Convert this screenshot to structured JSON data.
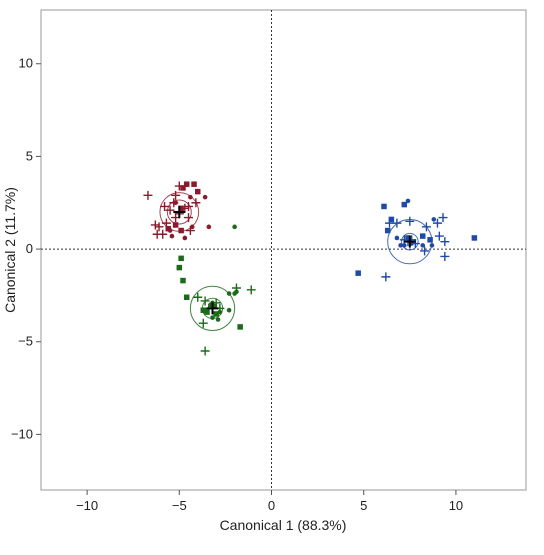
{
  "chart_data": {
    "type": "scatter",
    "title": "",
    "xlabel": "Canonical 1 (88.3%)",
    "ylabel": "Canonical 2 (11.7%)",
    "xlim": [
      -12.5,
      13.8
    ],
    "ylim": [
      -13,
      12.9
    ],
    "xticks": [
      -10,
      -5,
      0,
      5,
      10
    ],
    "xtick_labels": [
      "−10",
      "−5",
      "0",
      "5",
      "10"
    ],
    "yticks": [
      -10,
      -5,
      0,
      5,
      10
    ],
    "ytick_labels": [
      "−10",
      "−5",
      "0",
      "5",
      "10"
    ],
    "reference_lines": {
      "x": 0,
      "y": 0,
      "style": "dotted"
    },
    "grid": false,
    "legend": "none",
    "colors": {
      "red": "#8b1a2b",
      "green": "#1b6b1b",
      "blue": "#1f4aa8"
    },
    "groups": [
      {
        "color": "red",
        "centroid": [
          -5.0,
          2.0
        ],
        "circle_radii": [
          0.65,
          1.05
        ],
        "squares": [
          [
            -4.8,
            3.3
          ],
          [
            -4.6,
            3.5
          ],
          [
            -4.2,
            3.5
          ],
          [
            -4.0,
            3.1
          ],
          [
            -5.2,
            1.3
          ],
          [
            -4.9,
            1.0
          ],
          [
            -5.6,
            1.1
          ],
          [
            -4.9,
            2.2
          ]
        ],
        "dots": [
          [
            -4.4,
            2.8
          ],
          [
            -3.6,
            2.8
          ],
          [
            -3.4,
            1.2
          ],
          [
            -4.3,
            1.2
          ],
          [
            -4.7,
            0.6
          ],
          [
            -5.4,
            0.7
          ],
          [
            -5.5,
            1.0
          ],
          [
            -5.2,
            2.5
          ]
        ],
        "crosses": [
          [
            -6.7,
            2.9
          ],
          [
            -5.2,
            2.9
          ],
          [
            -5.0,
            3.4
          ],
          [
            -4.7,
            2.2
          ],
          [
            -4.5,
            2.3
          ],
          [
            -4.1,
            2.5
          ],
          [
            -5.3,
            2.5
          ],
          [
            -5.8,
            2.3
          ],
          [
            -6.1,
            1.2
          ],
          [
            -5.7,
            1.4
          ],
          [
            -5.2,
            1.7
          ],
          [
            -5.9,
            0.8
          ],
          [
            -6.3,
            1.3
          ],
          [
            -5.5,
            2.1
          ],
          [
            -5.0,
            1.9
          ],
          [
            -4.4,
            1.0
          ],
          [
            -4.5,
            1.7
          ],
          [
            -6.2,
            0.8
          ]
        ]
      },
      {
        "color": "green",
        "centroid": [
          -3.2,
          -3.2
        ],
        "circle_radii": [
          0.55,
          1.2
        ],
        "squares": [
          [
            -5.0,
            -1.0
          ],
          [
            -4.8,
            -1.7
          ],
          [
            -4.6,
            -2.6
          ],
          [
            -4.9,
            -0.5
          ],
          [
            -3.7,
            -3.3
          ],
          [
            -3.1,
            -3.1
          ],
          [
            -1.7,
            -4.2
          ],
          [
            -3.5,
            -3.4
          ],
          [
            -3.0,
            -3.5
          ]
        ],
        "dots": [
          [
            -2.3,
            -2.4
          ],
          [
            -2.0,
            -2.4
          ],
          [
            -2.3,
            -3.3
          ],
          [
            -2.8,
            -3.4
          ],
          [
            -3.2,
            -2.9
          ],
          [
            -2.9,
            -3.8
          ],
          [
            -1.9,
            -2.3
          ],
          [
            -2.0,
            1.2
          ],
          [
            -3.3,
            -3.0
          ],
          [
            -3.2,
            -3.7
          ]
        ],
        "crosses": [
          [
            -3.6,
            -5.5
          ],
          [
            -1.1,
            -2.2
          ],
          [
            -1.9,
            -2.1
          ],
          [
            -4.0,
            -2.6
          ],
          [
            -3.2,
            -3.1
          ],
          [
            -3.4,
            -3.2
          ],
          [
            -3.7,
            -4.0
          ],
          [
            -3.0,
            -2.9
          ],
          [
            -3.6,
            -2.8
          ],
          [
            -2.8,
            -3.2
          ]
        ]
      },
      {
        "color": "blue",
        "centroid": [
          7.5,
          0.4
        ],
        "circle_radii": [
          0.45,
          1.2
        ],
        "squares": [
          [
            6.1,
            2.3
          ],
          [
            6.5,
            1.6
          ],
          [
            7.2,
            2.4
          ],
          [
            8.6,
            0.5
          ],
          [
            11.0,
            0.6
          ],
          [
            4.7,
            -1.3
          ],
          [
            6.3,
            1.0
          ],
          [
            7.4,
            0.6
          ],
          [
            8.2,
            0.7
          ]
        ],
        "dots": [
          [
            7.4,
            2.6
          ],
          [
            8.8,
            1.6
          ],
          [
            7.6,
            0.3
          ],
          [
            8.7,
            0.2
          ],
          [
            8.2,
            0.2
          ],
          [
            7.2,
            0.2
          ],
          [
            7.0,
            0.2
          ],
          [
            6.8,
            0.6
          ]
        ],
        "crosses": [
          [
            6.2,
            -1.5
          ],
          [
            9.4,
            -0.4
          ],
          [
            9.3,
            1.7
          ],
          [
            9.0,
            1.4
          ],
          [
            8.4,
            1.2
          ],
          [
            6.8,
            1.4
          ],
          [
            6.4,
            1.4
          ],
          [
            7.5,
            1.5
          ],
          [
            9.1,
            0.7
          ],
          [
            9.4,
            0.4
          ],
          [
            7.4,
            0.4
          ],
          [
            7.6,
            0.5
          ],
          [
            8.3,
            -0.1
          ],
          [
            7.2,
            0.5
          ],
          [
            7.8,
            0.3
          ]
        ]
      }
    ]
  }
}
